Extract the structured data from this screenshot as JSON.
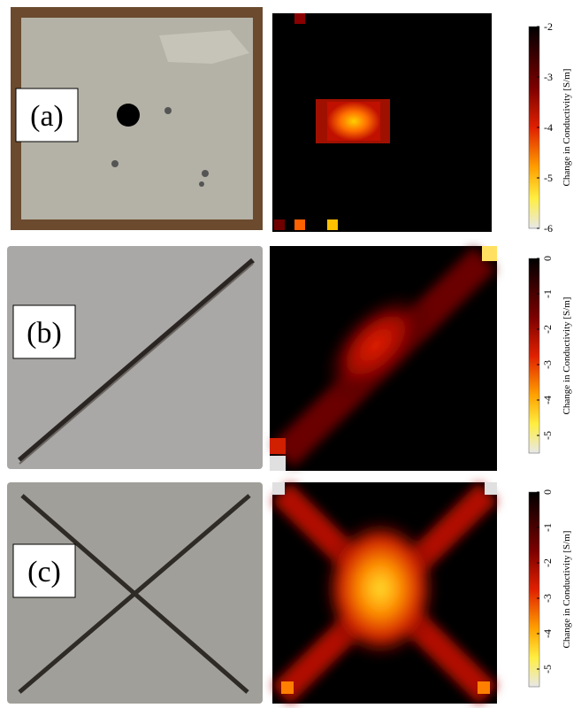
{
  "panels": [
    {
      "label": "(a)",
      "colorbar": {
        "label": "Change in Conductivity [S/m]",
        "lim": [
          -2,
          -6
        ],
        "ticks": [
          -2,
          -3,
          -4,
          -5,
          -6
        ]
      }
    },
    {
      "label": "(b)",
      "colorbar": {
        "label": "Change in Conductivity [S/m]",
        "lim": [
          0,
          -5.5
        ],
        "ticks": [
          0,
          -1,
          -2,
          -3,
          -4,
          -5
        ]
      }
    },
    {
      "label": "(c)",
      "colorbar": {
        "label": "Change in Conductivity [S/m]",
        "lim": [
          0,
          -5.5
        ],
        "ticks": [
          0,
          -1,
          -2,
          -3,
          -4,
          -5
        ]
      }
    }
  ]
}
